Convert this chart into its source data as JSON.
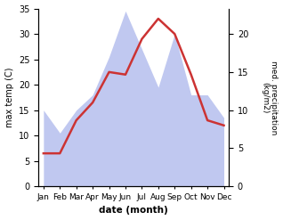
{
  "months": [
    "Jan",
    "Feb",
    "Mar",
    "Apr",
    "May",
    "Jun",
    "Jul",
    "Aug",
    "Sep",
    "Oct",
    "Nov",
    "Dec"
  ],
  "month_positions": [
    0,
    1,
    2,
    3,
    4,
    5,
    6,
    7,
    8,
    9,
    10,
    11
  ],
  "temperature": [
    6.5,
    6.5,
    13.0,
    16.5,
    22.5,
    22.0,
    29.0,
    33.0,
    30.0,
    22.0,
    13.0,
    12.0
  ],
  "precipitation": [
    10.0,
    7.0,
    10.0,
    12.0,
    17.0,
    23.0,
    18.0,
    13.0,
    20.0,
    12.0,
    12.0,
    9.0
  ],
  "temp_color": "#cc3333",
  "precip_color": "#c0c8f0",
  "ylabel_left": "max temp (C)",
  "ylabel_right": "med. precipitation\n(kg/m2)",
  "xlabel": "date (month)",
  "ylim_left": [
    0,
    35
  ],
  "ylim_right": [
    0,
    23.33
  ],
  "yticks_left": [
    0,
    5,
    10,
    15,
    20,
    25,
    30,
    35
  ],
  "yticks_right": [
    0,
    5,
    10,
    15,
    20
  ],
  "background_color": "#ffffff",
  "temp_linewidth": 1.8
}
